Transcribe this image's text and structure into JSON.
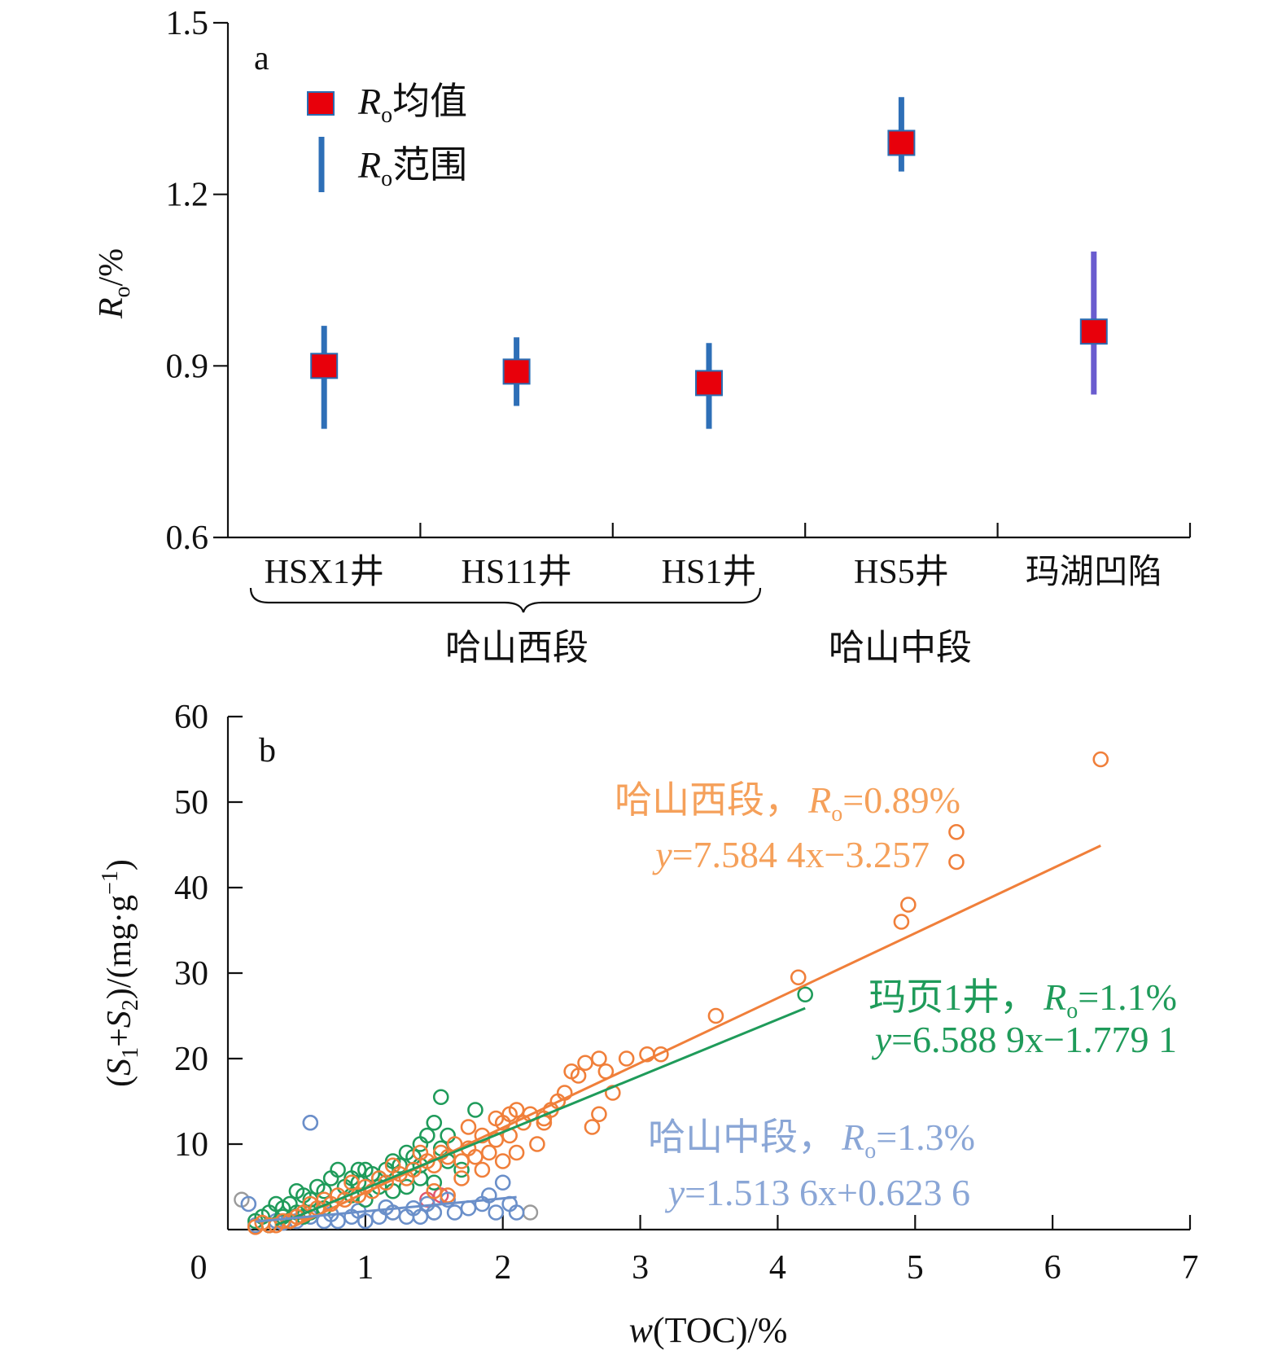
{
  "chart_data": [
    {
      "panel_label": "a",
      "type": "scatter",
      "ylabel": "Ro/%",
      "ylim": [
        0.6,
        1.5
      ],
      "yticks": [
        "0.6",
        "0.9",
        "1.2",
        "1.5"
      ],
      "categories": [
        "HSX1井",
        "HS11井",
        "HS1井",
        "HS5井",
        "玛湖凹陷"
      ],
      "groups": [
        {
          "label": "哈山西段",
          "members": [
            "HSX1井",
            "HS11井",
            "HS1井"
          ]
        },
        {
          "label": "哈山中段",
          "members": [
            "HS5井"
          ]
        }
      ],
      "legend": {
        "placement": "top-left",
        "mean_label": "均值",
        "range_label": "范围",
        "prefix_main": "R",
        "prefix_sub": "o"
      },
      "colors": {
        "mean": "#e8000b",
        "mean_edge": "#2a6db3",
        "range": "#2e6fb7",
        "range_mahu": "#6a5ccf"
      },
      "points": [
        {
          "category": "HSX1井",
          "mean": 0.9,
          "min": 0.79,
          "max": 0.97
        },
        {
          "category": "HS11井",
          "mean": 0.89,
          "min": 0.83,
          "max": 0.95
        },
        {
          "category": "HS1井",
          "mean": 0.87,
          "min": 0.79,
          "max": 0.94
        },
        {
          "category": "HS5井",
          "mean": 1.29,
          "min": 1.24,
          "max": 1.37
        },
        {
          "category": "玛湖凹陷",
          "mean": 0.96,
          "min": 0.85,
          "max": 1.1
        }
      ]
    },
    {
      "panel_label": "b",
      "type": "scatter",
      "xlabel": "w(TOC)/%",
      "ylabel": "(S1+S2)/(mg·g−1)",
      "xlim": [
        0,
        7
      ],
      "ylim": [
        0,
        60
      ],
      "xticks": [
        "0",
        "1",
        "2",
        "3",
        "4",
        "5",
        "6",
        "7"
      ],
      "yticks": [
        "10",
        "20",
        "30",
        "40",
        "50",
        "60"
      ],
      "series": [
        {
          "name": "哈山西段",
          "name_sep": "，",
          "ro_text": "=0.89%",
          "equation": "=7.584 4x−3.257",
          "slope": 7.5844,
          "intercept": -3.257,
          "fit_x": [
            0.45,
            6.35
          ],
          "color": "#f07f3a",
          "points": [
            [
              6.35,
              55
            ],
            [
              5.3,
              46.5
            ],
            [
              5.3,
              43
            ],
            [
              4.95,
              38
            ],
            [
              4.9,
              36
            ],
            [
              4.15,
              29.5
            ],
            [
              3.55,
              25
            ],
            [
              3.15,
              20.5
            ],
            [
              3.05,
              20.5
            ],
            [
              2.8,
              16
            ],
            [
              2.75,
              18.5
            ],
            [
              2.7,
              20
            ],
            [
              2.6,
              19.5
            ],
            [
              2.55,
              18
            ],
            [
              2.5,
              18.5
            ],
            [
              2.7,
              13.5
            ],
            [
              2.65,
              12
            ],
            [
              2.45,
              16
            ],
            [
              2.4,
              15
            ],
            [
              2.35,
              14
            ],
            [
              2.3,
              12.5
            ],
            [
              2.2,
              13.5
            ],
            [
              2.15,
              12.5
            ],
            [
              2.1,
              14
            ],
            [
              2.05,
              11
            ],
            [
              2.0,
              12.5
            ],
            [
              1.95,
              10.5
            ],
            [
              1.9,
              9
            ],
            [
              1.85,
              11
            ],
            [
              1.8,
              8.5
            ],
            [
              1.75,
              9.5
            ],
            [
              1.7,
              8
            ],
            [
              1.65,
              10
            ],
            [
              1.6,
              8.5
            ],
            [
              1.55,
              9
            ],
            [
              1.5,
              7.5
            ],
            [
              1.45,
              8
            ],
            [
              1.4,
              9
            ],
            [
              1.35,
              7
            ],
            [
              1.3,
              6
            ],
            [
              1.25,
              6.5
            ],
            [
              1.2,
              7.5
            ],
            [
              1.15,
              5.5
            ],
            [
              1.1,
              6
            ],
            [
              1.05,
              4.5
            ],
            [
              1.0,
              5
            ],
            [
              0.95,
              4
            ],
            [
              0.9,
              5.5
            ],
            [
              0.85,
              3.5
            ],
            [
              0.8,
              4
            ],
            [
              0.75,
              3
            ],
            [
              0.7,
              3.5
            ],
            [
              0.65,
              2.5
            ],
            [
              0.6,
              3
            ],
            [
              0.55,
              2
            ],
            [
              0.5,
              1.5
            ],
            [
              0.45,
              1
            ],
            [
              0.4,
              1
            ],
            [
              0.35,
              0.5
            ],
            [
              0.3,
              0.5
            ],
            [
              0.2,
              0.3
            ],
            [
              0.25,
              0.8
            ],
            [
              2.25,
              10
            ],
            [
              2.0,
              8
            ],
            [
              1.85,
              7
            ],
            [
              1.7,
              6
            ],
            [
              1.6,
              4
            ],
            [
              1.5,
              4.5
            ],
            [
              2.1,
              9
            ],
            [
              1.95,
              13
            ],
            [
              2.05,
              13.5
            ],
            [
              1.75,
              12
            ],
            [
              2.3,
              13
            ],
            [
              2.9,
              20
            ]
          ]
        },
        {
          "name": "玛页1井",
          "name_sep": "，",
          "ro_text": "=1.1%",
          "equation": "=6.588 9x−1.779 1",
          "slope": 6.5889,
          "intercept": -1.7791,
          "fit_x": [
            0.35,
            4.2
          ],
          "color": "#1f9b5a",
          "points": [
            [
              4.2,
              27.5
            ],
            [
              1.55,
              15.5
            ],
            [
              1.8,
              14
            ],
            [
              1.5,
              12.5
            ],
            [
              1.45,
              11
            ],
            [
              1.55,
              9.5
            ],
            [
              1.4,
              10
            ],
            [
              1.35,
              8.5
            ],
            [
              1.3,
              9
            ],
            [
              1.25,
              7.5
            ],
            [
              1.2,
              8
            ],
            [
              1.15,
              7
            ],
            [
              1.1,
              6
            ],
            [
              1.05,
              6.5
            ],
            [
              1.0,
              7
            ],
            [
              0.95,
              5.5
            ],
            [
              0.9,
              6
            ],
            [
              0.85,
              5
            ],
            [
              0.8,
              7
            ],
            [
              0.75,
              6
            ],
            [
              0.7,
              4.5
            ],
            [
              0.65,
              5
            ],
            [
              0.6,
              3.5
            ],
            [
              0.55,
              4
            ],
            [
              0.5,
              4.5
            ],
            [
              0.45,
              3
            ],
            [
              0.4,
              2.5
            ],
            [
              0.35,
              3
            ],
            [
              0.3,
              2
            ],
            [
              0.25,
              1.5
            ],
            [
              0.2,
              1
            ],
            [
              0.3,
              0.5
            ],
            [
              0.45,
              1
            ],
            [
              0.55,
              1.5
            ],
            [
              1.6,
              8
            ],
            [
              1.7,
              7
            ],
            [
              1.5,
              5.5
            ],
            [
              1.4,
              6
            ],
            [
              1.3,
              5
            ],
            [
              1.2,
              4.5
            ],
            [
              1.0,
              3.5
            ],
            [
              0.9,
              4
            ],
            [
              0.7,
              2.5
            ],
            [
              0.6,
              2
            ],
            [
              0.5,
              2
            ],
            [
              0.4,
              1.5
            ],
            [
              1.6,
              11
            ],
            [
              1.4,
              7.5
            ],
            [
              1.1,
              5
            ],
            [
              0.95,
              7
            ]
          ]
        },
        {
          "name": "哈山中段",
          "name_sep": "，",
          "ro_text": "=1.3%",
          "equation": "=1.513 6x+0.623 6",
          "slope": 1.5136,
          "intercept": 0.6236,
          "fit_x": [
            0.2,
            2.1
          ],
          "color": "#6a8fc9",
          "points": [
            [
              0.6,
              12.5
            ],
            [
              2.0,
              5.5
            ],
            [
              1.9,
              4
            ],
            [
              2.05,
              3
            ],
            [
              2.1,
              2
            ],
            [
              1.95,
              2
            ],
            [
              1.85,
              3
            ],
            [
              1.75,
              2.5
            ],
            [
              1.65,
              2
            ],
            [
              1.6,
              3.5
            ],
            [
              1.5,
              2
            ],
            [
              1.4,
              1.5
            ],
            [
              1.35,
              2.5
            ],
            [
              1.3,
              1.5
            ],
            [
              1.2,
              2
            ],
            [
              1.1,
              1.5
            ],
            [
              1.0,
              1
            ],
            [
              0.9,
              1.5
            ],
            [
              0.8,
              1
            ],
            [
              0.7,
              1
            ],
            [
              0.6,
              1.5
            ],
            [
              0.5,
              1
            ],
            [
              0.4,
              0.8
            ],
            [
              0.3,
              0.5
            ],
            [
              0.2,
              0.5
            ],
            [
              0.15,
              3
            ],
            [
              0.35,
              1
            ],
            [
              0.55,
              2
            ],
            [
              0.75,
              1.8
            ],
            [
              0.95,
              2.2
            ],
            [
              1.15,
              2.6
            ],
            [
              1.45,
              3
            ]
          ]
        }
      ],
      "extra_points": [
        {
          "color": "#9a9a9a",
          "points": [
            [
              0.1,
              3.5
            ],
            [
              1.2,
              2
            ],
            [
              1.5,
              2
            ],
            [
              2.2,
              2
            ]
          ]
        },
        {
          "color": "#e0566f",
          "points": [
            [
              1.55,
              4
            ],
            [
              1.45,
              3.5
            ]
          ]
        },
        {
          "color": "#8a7fd6",
          "points": [
            [
              0.6,
              12.5
            ]
          ]
        }
      ]
    }
  ]
}
